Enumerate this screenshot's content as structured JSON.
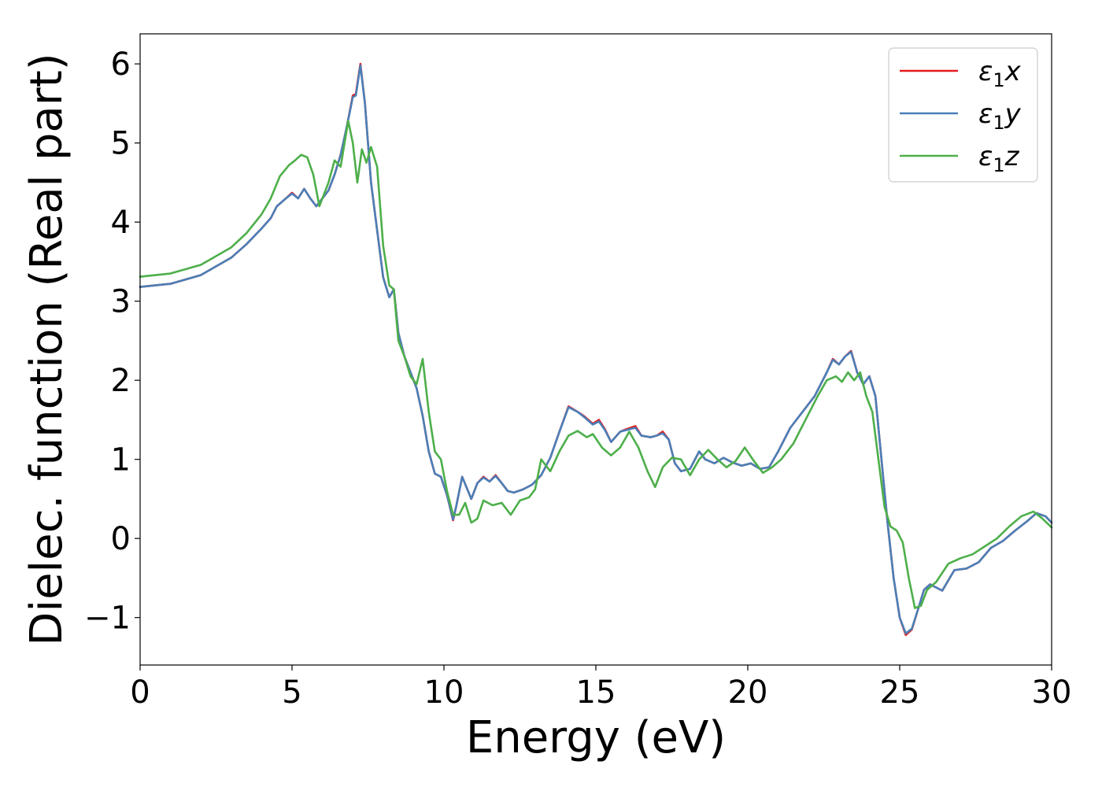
{
  "chart_data": {
    "type": "line",
    "xlabel": "Energy (eV)",
    "ylabel": "Dielec. function (Real part)",
    "xlim": [
      0,
      30
    ],
    "ylim": [
      -1.6,
      6.38
    ],
    "xticks": [
      0,
      5,
      10,
      15,
      20,
      25,
      30
    ],
    "yticks": [
      -1,
      0,
      1,
      2,
      3,
      4,
      5,
      6
    ],
    "xtick_labels": [
      "0",
      "5",
      "10",
      "15",
      "20",
      "25",
      "30"
    ],
    "ytick_labels": [
      "−1",
      "0",
      "1",
      "2",
      "3",
      "4",
      "5",
      "6"
    ],
    "grid": false,
    "legend_position": "top-right",
    "series": [
      {
        "name": "ε1x",
        "legend_base": "ε",
        "legend_sub": "1",
        "legend_suffix": "x",
        "color": "#e41a1c",
        "x": [
          0,
          1,
          2,
          3,
          3.5,
          4,
          4.3,
          4.5,
          4.8,
          5.0,
          5.2,
          5.4,
          5.6,
          5.8,
          6.0,
          6.2,
          6.4,
          6.6,
          6.8,
          7.0,
          7.1,
          7.25,
          7.4,
          7.6,
          7.8,
          8.0,
          8.2,
          8.35,
          8.5,
          8.7,
          8.9,
          9.1,
          9.3,
          9.5,
          9.7,
          9.9,
          10.1,
          10.3,
          10.4,
          10.6,
          10.9,
          11.1,
          11.3,
          11.5,
          11.7,
          11.9,
          12.1,
          12.3,
          12.6,
          12.9,
          13.2,
          13.5,
          13.8,
          14.1,
          14.4,
          14.6,
          14.9,
          15.1,
          15.3,
          15.5,
          15.8,
          16.0,
          16.3,
          16.5,
          16.8,
          17.0,
          17.2,
          17.4,
          17.6,
          17.8,
          18.1,
          18.4,
          18.6,
          18.9,
          19.2,
          19.5,
          19.8,
          20.1,
          20.4,
          20.7,
          21.0,
          21.4,
          21.8,
          22.2,
          22.6,
          22.8,
          23.0,
          23.2,
          23.4,
          23.6,
          23.8,
          24.0,
          24.2,
          24.4,
          24.6,
          24.8,
          25.0,
          25.2,
          25.4,
          25.6,
          25.8,
          26.0,
          26.4,
          26.8,
          27.2,
          27.6,
          28.0,
          28.4,
          28.8,
          29.2,
          29.5,
          29.8,
          30.0
        ],
        "y": [
          3.18,
          3.22,
          3.33,
          3.55,
          3.72,
          3.92,
          4.05,
          4.2,
          4.3,
          4.37,
          4.3,
          4.42,
          4.3,
          4.2,
          4.3,
          4.4,
          4.6,
          4.85,
          5.2,
          5.6,
          5.62,
          6.0,
          5.5,
          4.5,
          3.9,
          3.3,
          3.05,
          3.15,
          2.6,
          2.3,
          2.1,
          1.9,
          1.55,
          1.1,
          0.82,
          0.78,
          0.55,
          0.23,
          0.4,
          0.78,
          0.5,
          0.7,
          0.78,
          0.72,
          0.8,
          0.7,
          0.6,
          0.58,
          0.62,
          0.68,
          0.8,
          1.02,
          1.35,
          1.67,
          1.6,
          1.55,
          1.45,
          1.5,
          1.38,
          1.22,
          1.35,
          1.38,
          1.42,
          1.3,
          1.28,
          1.3,
          1.35,
          1.25,
          0.95,
          0.85,
          0.88,
          1.1,
          1.0,
          0.95,
          1.02,
          0.96,
          0.92,
          0.95,
          0.88,
          0.9,
          1.1,
          1.4,
          1.6,
          1.8,
          2.1,
          2.27,
          2.2,
          2.3,
          2.37,
          2.1,
          1.95,
          2.05,
          1.8,
          1.0,
          0.2,
          -0.5,
          -1.0,
          -1.22,
          -1.15,
          -0.9,
          -0.65,
          -0.58,
          -0.66,
          -0.4,
          -0.38,
          -0.3,
          -0.12,
          -0.03,
          0.1,
          0.22,
          0.32,
          0.28,
          0.2
        ]
      },
      {
        "name": "ε1y",
        "legend_base": "ε",
        "legend_sub": "1",
        "legend_suffix": "y",
        "color": "#4a7fb8",
        "x": [
          0,
          1,
          2,
          3,
          3.5,
          4,
          4.3,
          4.5,
          4.8,
          5.0,
          5.2,
          5.4,
          5.6,
          5.8,
          6.0,
          6.2,
          6.4,
          6.6,
          6.8,
          7.0,
          7.1,
          7.25,
          7.4,
          7.6,
          7.8,
          8.0,
          8.2,
          8.35,
          8.5,
          8.7,
          8.9,
          9.1,
          9.3,
          9.5,
          9.7,
          9.9,
          10.1,
          10.3,
          10.4,
          10.6,
          10.9,
          11.1,
          11.3,
          11.5,
          11.7,
          11.9,
          12.1,
          12.3,
          12.6,
          12.9,
          13.2,
          13.5,
          13.8,
          14.1,
          14.4,
          14.6,
          14.9,
          15.1,
          15.3,
          15.5,
          15.8,
          16.0,
          16.3,
          16.5,
          16.8,
          17.0,
          17.2,
          17.4,
          17.6,
          17.8,
          18.1,
          18.4,
          18.6,
          18.9,
          19.2,
          19.5,
          19.8,
          20.1,
          20.4,
          20.7,
          21.0,
          21.4,
          21.8,
          22.2,
          22.6,
          22.8,
          23.0,
          23.2,
          23.4,
          23.6,
          23.8,
          24.0,
          24.2,
          24.4,
          24.6,
          24.8,
          25.0,
          25.2,
          25.4,
          25.6,
          25.8,
          26.0,
          26.4,
          26.8,
          27.2,
          27.6,
          28.0,
          28.4,
          28.8,
          29.2,
          29.5,
          29.8,
          30.0
        ],
        "y": [
          3.18,
          3.22,
          3.33,
          3.55,
          3.72,
          3.92,
          4.05,
          4.2,
          4.3,
          4.36,
          4.3,
          4.42,
          4.3,
          4.2,
          4.3,
          4.4,
          4.6,
          4.85,
          5.2,
          5.58,
          5.6,
          5.98,
          5.5,
          4.5,
          3.9,
          3.3,
          3.05,
          3.15,
          2.6,
          2.3,
          2.1,
          1.9,
          1.55,
          1.1,
          0.82,
          0.78,
          0.55,
          0.24,
          0.4,
          0.78,
          0.5,
          0.7,
          0.77,
          0.72,
          0.79,
          0.7,
          0.6,
          0.58,
          0.62,
          0.68,
          0.8,
          1.02,
          1.35,
          1.66,
          1.6,
          1.54,
          1.44,
          1.48,
          1.37,
          1.22,
          1.35,
          1.37,
          1.4,
          1.3,
          1.28,
          1.3,
          1.33,
          1.25,
          0.95,
          0.85,
          0.88,
          1.1,
          1.0,
          0.95,
          1.02,
          0.96,
          0.92,
          0.95,
          0.88,
          0.9,
          1.1,
          1.4,
          1.6,
          1.8,
          2.1,
          2.26,
          2.2,
          2.3,
          2.36,
          2.1,
          1.95,
          2.05,
          1.8,
          1.0,
          0.2,
          -0.5,
          -1.0,
          -1.2,
          -1.14,
          -0.9,
          -0.65,
          -0.58,
          -0.66,
          -0.4,
          -0.38,
          -0.3,
          -0.12,
          -0.03,
          0.1,
          0.22,
          0.32,
          0.28,
          0.2
        ]
      },
      {
        "name": "ε1z",
        "legend_base": "ε",
        "legend_sub": "1",
        "legend_suffix": "z",
        "color": "#4daf4a",
        "x": [
          0,
          1,
          2,
          3,
          3.5,
          4,
          4.3,
          4.6,
          4.9,
          5.1,
          5.3,
          5.5,
          5.7,
          5.9,
          6.0,
          6.2,
          6.4,
          6.6,
          6.85,
          7.0,
          7.15,
          7.3,
          7.45,
          7.6,
          7.8,
          8.0,
          8.2,
          8.35,
          8.5,
          8.7,
          8.9,
          9.1,
          9.3,
          9.5,
          9.7,
          9.9,
          10.1,
          10.3,
          10.5,
          10.7,
          10.9,
          11.1,
          11.3,
          11.6,
          11.9,
          12.2,
          12.5,
          12.8,
          13.0,
          13.2,
          13.5,
          13.8,
          14.1,
          14.4,
          14.7,
          14.9,
          15.2,
          15.5,
          15.8,
          16.1,
          16.4,
          16.7,
          16.95,
          17.2,
          17.5,
          17.8,
          18.1,
          18.4,
          18.7,
          19.0,
          19.3,
          19.6,
          19.9,
          20.2,
          20.5,
          20.8,
          21.1,
          21.5,
          21.9,
          22.3,
          22.6,
          22.9,
          23.1,
          23.3,
          23.5,
          23.7,
          23.9,
          24.1,
          24.3,
          24.5,
          24.7,
          24.9,
          25.1,
          25.3,
          25.5,
          25.7,
          25.9,
          26.2,
          26.6,
          27.0,
          27.4,
          27.8,
          28.2,
          28.6,
          29.0,
          29.4,
          29.7,
          30.0
        ],
        "y": [
          3.31,
          3.35,
          3.46,
          3.68,
          3.86,
          4.1,
          4.3,
          4.58,
          4.72,
          4.78,
          4.85,
          4.82,
          4.6,
          4.2,
          4.3,
          4.5,
          4.78,
          4.7,
          5.28,
          5.0,
          4.5,
          4.92,
          4.75,
          4.95,
          4.7,
          3.7,
          3.2,
          3.15,
          2.5,
          2.3,
          2.05,
          1.95,
          2.27,
          1.6,
          1.1,
          1.0,
          0.6,
          0.3,
          0.3,
          0.45,
          0.2,
          0.25,
          0.48,
          0.42,
          0.45,
          0.3,
          0.48,
          0.52,
          0.62,
          1.0,
          0.85,
          1.1,
          1.3,
          1.36,
          1.28,
          1.32,
          1.15,
          1.05,
          1.15,
          1.35,
          1.15,
          0.85,
          0.65,
          0.9,
          1.02,
          1.0,
          0.8,
          1.0,
          1.12,
          1.0,
          0.9,
          0.98,
          1.15,
          0.98,
          0.83,
          0.9,
          1.0,
          1.2,
          1.5,
          1.8,
          2.0,
          2.05,
          1.98,
          2.1,
          2.0,
          2.1,
          1.8,
          1.6,
          1.0,
          0.4,
          0.15,
          0.1,
          -0.05,
          -0.5,
          -0.88,
          -0.85,
          -0.65,
          -0.55,
          -0.32,
          -0.25,
          -0.2,
          -0.1,
          0.0,
          0.15,
          0.28,
          0.34,
          0.25,
          0.14
        ]
      }
    ]
  }
}
